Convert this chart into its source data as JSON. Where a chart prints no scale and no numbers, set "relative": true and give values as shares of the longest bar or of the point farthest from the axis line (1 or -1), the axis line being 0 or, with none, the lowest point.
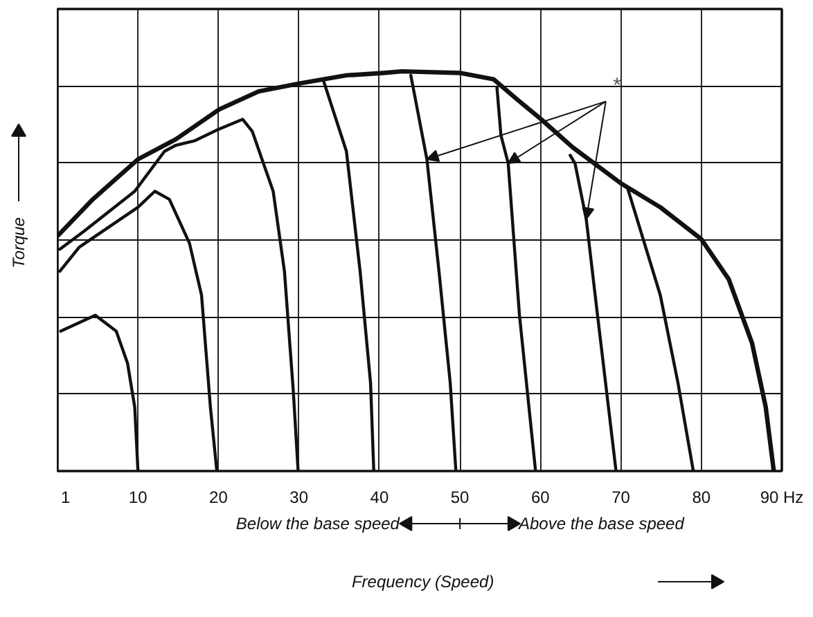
{
  "chart_data": {
    "type": "line",
    "relative": true,
    "xlabel": "Frequency (Speed)",
    "ylabel": "Torque",
    "xlim": [
      0,
      90
    ],
    "xticks": [
      1,
      10,
      20,
      30,
      40,
      50,
      60,
      70,
      80,
      {
        "value": 90,
        "label": "90 Hz"
      }
    ],
    "grid": true,
    "line_style": "solid",
    "marker": "none",
    "annotations": [
      "*",
      "Below the base speed",
      "Above the base speed"
    ],
    "series": [
      {
        "color": "#111111",
        "x": [
          0.1,
          4.4,
          10,
          14.7,
          20.1,
          25,
          30.2,
          35.9,
          40.5,
          42.8,
          50,
          54.2,
          57.1,
          60.1,
          64,
          70,
          74.9,
          80,
          83.4,
          86.3,
          88,
          89
        ],
        "values": [
          0.59,
          0.68,
          0.78,
          0.83,
          0.905,
          0.95,
          0.97,
          0.99,
          0.996,
          1,
          0.996,
          0.98,
          0.93,
          0.88,
          0.81,
          0.72,
          0.66,
          0.58,
          0.48,
          0.32,
          0.16,
          0
        ]
      },
      {
        "color": "#111111",
        "x": [
          0.4,
          4.7,
          7.3,
          8.7,
          9.6,
          10
        ],
        "values": [
          0.35,
          0.39,
          0.35,
          0.27,
          0.16,
          0
        ]
      },
      {
        "color": "#111111",
        "x": [
          0.3,
          2.7,
          10,
          12.1,
          13.9,
          16.4,
          17.9,
          19,
          19.8
        ],
        "values": [
          0.5,
          0.56,
          0.66,
          0.7,
          0.68,
          0.57,
          0.44,
          0.16,
          0
        ]
      },
      {
        "color": "#111111",
        "x": [
          0.3,
          3.3,
          9.6,
          13.3,
          14.7,
          17,
          19.9,
          23,
          24.2,
          26.8,
          28.2,
          29.3,
          29.9
        ],
        "values": [
          0.555,
          0.6,
          0.7,
          0.8,
          0.815,
          0.826,
          0.854,
          0.88,
          0.85,
          0.7,
          0.5,
          0.2,
          0
        ]
      },
      {
        "color": "#111111",
        "x": [
          33,
          35.9,
          37.6,
          38.9,
          39.3
        ],
        "values": [
          0.98,
          0.8,
          0.5,
          0.22,
          0
        ]
      },
      {
        "color": "#111111",
        "x": [
          43.9,
          45.9,
          47.4,
          48.8,
          49.5
        ],
        "values": [
          0.99,
          0.78,
          0.5,
          0.22,
          0
        ]
      },
      {
        "color": "#111111",
        "x": [
          54.6,
          55.1,
          56,
          57.4,
          59.4
        ],
        "values": [
          0.96,
          0.84,
          0.77,
          0.39,
          0
        ]
      },
      {
        "color": "#111111",
        "x": [
          63.7,
          64.3,
          65.7,
          67.1,
          69.4
        ],
        "values": [
          0.79,
          0.77,
          0.63,
          0.39,
          0
        ]
      },
      {
        "color": "#111111",
        "x": [
          70.8,
          74.9,
          77.1,
          79
        ],
        "values": [
          0.71,
          0.44,
          0.22,
          0
        ]
      }
    ]
  }
}
